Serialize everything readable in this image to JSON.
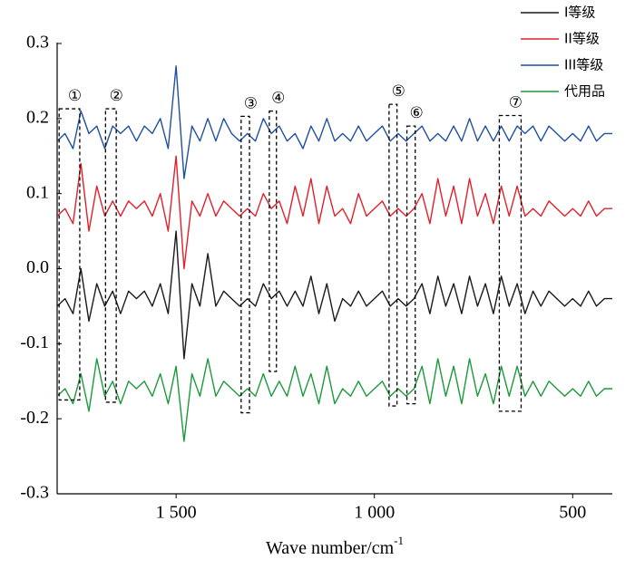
{
  "chart_data": {
    "type": "line",
    "xlabel": "Wave number/cm",
    "xlabel_sup": "-1",
    "xlim": [
      1800,
      400
    ],
    "xticks": [
      {
        "value": 1500,
        "label": "1 500"
      },
      {
        "value": 1000,
        "label": "1 000"
      },
      500
    ],
    "ylim": [
      -0.3,
      0.3
    ],
    "yticks": [
      0.3,
      0.2,
      0.1,
      {
        "value": 0,
        "label": "0.0"
      },
      -0.1,
      -0.2,
      -0.3
    ],
    "legend": "upper right",
    "x": [
      1800,
      1780,
      1760,
      1740,
      1720,
      1700,
      1680,
      1660,
      1640,
      1620,
      1600,
      1580,
      1560,
      1540,
      1520,
      1500,
      1480,
      1460,
      1440,
      1420,
      1400,
      1380,
      1360,
      1340,
      1320,
      1300,
      1280,
      1260,
      1240,
      1220,
      1200,
      1180,
      1160,
      1140,
      1120,
      1100,
      1080,
      1060,
      1040,
      1020,
      1000,
      980,
      960,
      940,
      920,
      900,
      880,
      860,
      840,
      820,
      800,
      780,
      760,
      740,
      720,
      700,
      680,
      660,
      640,
      620,
      600,
      580,
      560,
      540,
      520,
      500,
      480,
      460,
      440,
      420,
      400
    ],
    "series": [
      {
        "name": "I等级",
        "color": "#1a1a1a",
        "values": [
          -0.05,
          -0.04,
          -0.06,
          0.0,
          -0.07,
          -0.02,
          -0.05,
          -0.03,
          -0.06,
          -0.03,
          -0.04,
          -0.03,
          -0.05,
          -0.02,
          -0.06,
          0.05,
          -0.12,
          -0.02,
          -0.05,
          0.02,
          -0.05,
          -0.03,
          -0.04,
          -0.05,
          -0.04,
          -0.05,
          -0.02,
          -0.04,
          -0.03,
          -0.05,
          -0.03,
          -0.05,
          -0.01,
          -0.06,
          -0.02,
          -0.07,
          -0.04,
          -0.05,
          -0.03,
          -0.05,
          -0.04,
          -0.03,
          -0.05,
          -0.04,
          -0.05,
          -0.04,
          -0.02,
          -0.06,
          -0.01,
          -0.05,
          -0.02,
          -0.06,
          -0.01,
          -0.05,
          -0.02,
          -0.06,
          -0.01,
          -0.05,
          -0.02,
          -0.06,
          -0.03,
          -0.05,
          -0.03,
          -0.04,
          -0.05,
          -0.04,
          -0.05,
          -0.03,
          -0.05,
          -0.04,
          -0.04
        ]
      },
      {
        "name": "II等级",
        "color": "#e0202a",
        "values": [
          0.07,
          0.08,
          0.06,
          0.14,
          0.05,
          0.11,
          0.07,
          0.09,
          0.07,
          0.09,
          0.08,
          0.09,
          0.07,
          0.1,
          0.05,
          0.15,
          0.0,
          0.09,
          0.07,
          0.1,
          0.07,
          0.09,
          0.08,
          0.07,
          0.08,
          0.07,
          0.1,
          0.08,
          0.09,
          0.06,
          0.11,
          0.07,
          0.12,
          0.06,
          0.11,
          0.07,
          0.08,
          0.06,
          0.1,
          0.07,
          0.08,
          0.09,
          0.07,
          0.08,
          0.07,
          0.08,
          0.1,
          0.06,
          0.12,
          0.07,
          0.11,
          0.06,
          0.12,
          0.07,
          0.1,
          0.06,
          0.11,
          0.07,
          0.11,
          0.07,
          0.08,
          0.07,
          0.09,
          0.08,
          0.07,
          0.08,
          0.07,
          0.09,
          0.07,
          0.08,
          0.08
        ]
      },
      {
        "name": "III等级",
        "color": "#1f4fa0",
        "values": [
          0.17,
          0.18,
          0.16,
          0.21,
          0.18,
          0.19,
          0.16,
          0.19,
          0.18,
          0.19,
          0.17,
          0.19,
          0.18,
          0.2,
          0.16,
          0.27,
          0.12,
          0.19,
          0.17,
          0.2,
          0.17,
          0.2,
          0.18,
          0.17,
          0.18,
          0.17,
          0.2,
          0.18,
          0.19,
          0.17,
          0.18,
          0.16,
          0.19,
          0.17,
          0.2,
          0.17,
          0.18,
          0.17,
          0.19,
          0.17,
          0.18,
          0.19,
          0.17,
          0.18,
          0.17,
          0.18,
          0.19,
          0.17,
          0.18,
          0.17,
          0.19,
          0.17,
          0.2,
          0.17,
          0.19,
          0.17,
          0.19,
          0.17,
          0.19,
          0.18,
          0.19,
          0.17,
          0.19,
          0.18,
          0.17,
          0.18,
          0.17,
          0.19,
          0.17,
          0.18,
          0.18
        ]
      },
      {
        "name": "代用品",
        "color": "#1a9a3a",
        "values": [
          -0.17,
          -0.16,
          -0.18,
          -0.14,
          -0.19,
          -0.12,
          -0.17,
          -0.15,
          -0.18,
          -0.15,
          -0.16,
          -0.15,
          -0.17,
          -0.14,
          -0.18,
          -0.13,
          -0.23,
          -0.14,
          -0.17,
          -0.12,
          -0.17,
          -0.15,
          -0.16,
          -0.17,
          -0.16,
          -0.17,
          -0.14,
          -0.17,
          -0.15,
          -0.17,
          -0.13,
          -0.17,
          -0.14,
          -0.18,
          -0.13,
          -0.18,
          -0.16,
          -0.17,
          -0.15,
          -0.17,
          -0.16,
          -0.15,
          -0.17,
          -0.16,
          -0.17,
          -0.16,
          -0.13,
          -0.18,
          -0.12,
          -0.17,
          -0.13,
          -0.18,
          -0.12,
          -0.17,
          -0.14,
          -0.18,
          -0.13,
          -0.17,
          -0.13,
          -0.17,
          -0.15,
          -0.17,
          -0.15,
          -0.16,
          -0.17,
          -0.16,
          -0.17,
          -0.15,
          -0.17,
          -0.16,
          -0.16
        ]
      }
    ],
    "regions": [
      {
        "label": "①",
        "x": [
          1795,
          1743
        ],
        "y": [
          0.213,
          -0.175
        ]
      },
      {
        "label": "②",
        "x": [
          1678,
          1651
        ],
        "y": [
          0.213,
          -0.178
        ]
      },
      {
        "label": "③",
        "x": [
          1336,
          1315
        ],
        "y": [
          0.203,
          -0.192
        ]
      },
      {
        "label": "④",
        "x": [
          1265,
          1247
        ],
        "y": [
          0.21,
          -0.137
        ]
      },
      {
        "label": "⑤",
        "x": [
          963,
          943
        ],
        "y": [
          0.219,
          -0.183
        ]
      },
      {
        "label": "⑥",
        "x": [
          918,
          897
        ],
        "y": [
          0.19,
          -0.18
        ]
      },
      {
        "label": "⑦",
        "x": [
          685,
          630
        ],
        "y": [
          0.204,
          -0.19
        ]
      }
    ]
  }
}
